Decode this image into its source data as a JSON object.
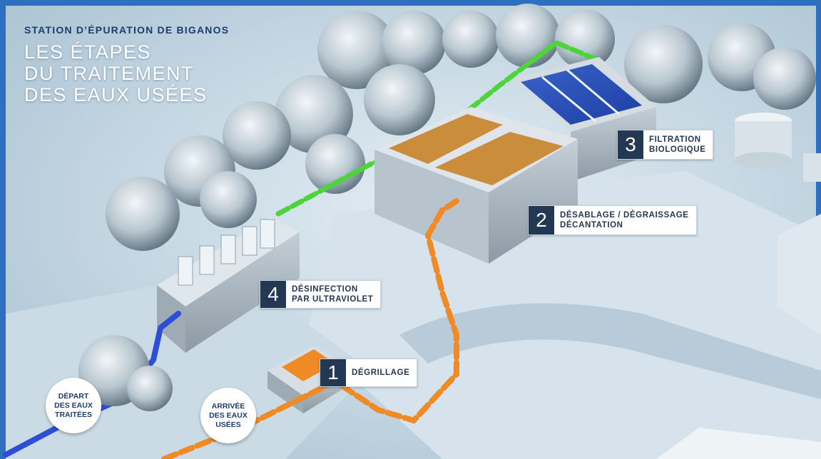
{
  "header": {
    "subtitle": "STATION D’ÉPURATION DE BIGANOS",
    "title_lines": [
      "LES ÉTAPES",
      "DU TRAITEMENT",
      "DES EAUX USÉES"
    ]
  },
  "steps": [
    {
      "number": "1",
      "lines": [
        "DÉGRILLAGE"
      ]
    },
    {
      "number": "2",
      "lines": [
        "DÉSABLAGE / DÉGRAISSAGE",
        "DÉCANTATION"
      ]
    },
    {
      "number": "3",
      "lines": [
        "FILTRATION",
        "BIOLOGIQUE"
      ]
    },
    {
      "number": "4",
      "lines": [
        "DÉSINFECTION",
        "PAR ULTRAVIOLET"
      ]
    }
  ],
  "bubbles": {
    "depart": [
      "DÉPART",
      "DES EAUX",
      "TRAITÉES"
    ],
    "arrivee": [
      "ARRIVÉE",
      "DES EAUX",
      "USÉES"
    ]
  },
  "colors": {
    "frame": "#2f6fc0",
    "ground": "#c9dbe6",
    "raw_water_pipe": "#f08a24",
    "treated_water_pipe": "#2d4fd6",
    "return_pipe": "#4cd43a",
    "label_dark": "#233852"
  }
}
